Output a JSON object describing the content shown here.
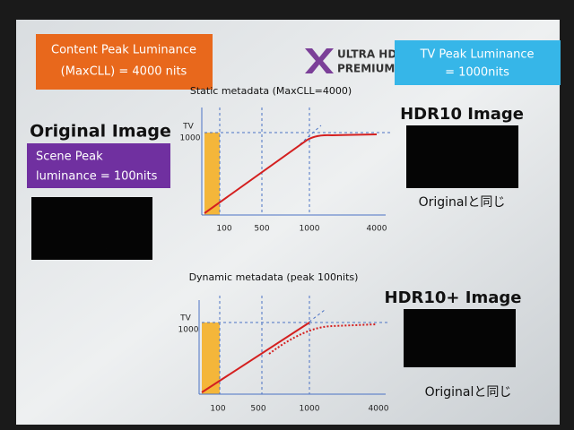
{
  "content_peak": {
    "lines": [
      "Content  Peak Luminance",
      "(MaxCLL) = 4000 nits"
    ]
  },
  "logo": {
    "line1": "ULTRA HD",
    "line2": "PREMIUM"
  },
  "tv_peak": {
    "lines": [
      "TV Peak Luminance",
      "= 1000nits"
    ]
  },
  "original": {
    "title": "Original Image",
    "scene_peak": [
      "Scene Peak",
      "luminance = 100nits"
    ]
  },
  "static_chart": {
    "title": "Static metadata (MaxCLL=4000)",
    "y_labels": [
      "TV",
      "1000"
    ],
    "x_labels": [
      "100",
      "500",
      "1000",
      "4000"
    ]
  },
  "dynamic_chart": {
    "title": "Dynamic metadata (peak 100nits)",
    "y_labels": [
      "TV",
      "1000"
    ],
    "x_labels": [
      "100",
      "500",
      "1000",
      "4000"
    ]
  },
  "hdr10": {
    "title": "HDR10 Image",
    "caption": "Originalと同じ"
  },
  "hdr10plus": {
    "title": "HDR10+ Image",
    "caption": "Originalと同じ"
  }
}
